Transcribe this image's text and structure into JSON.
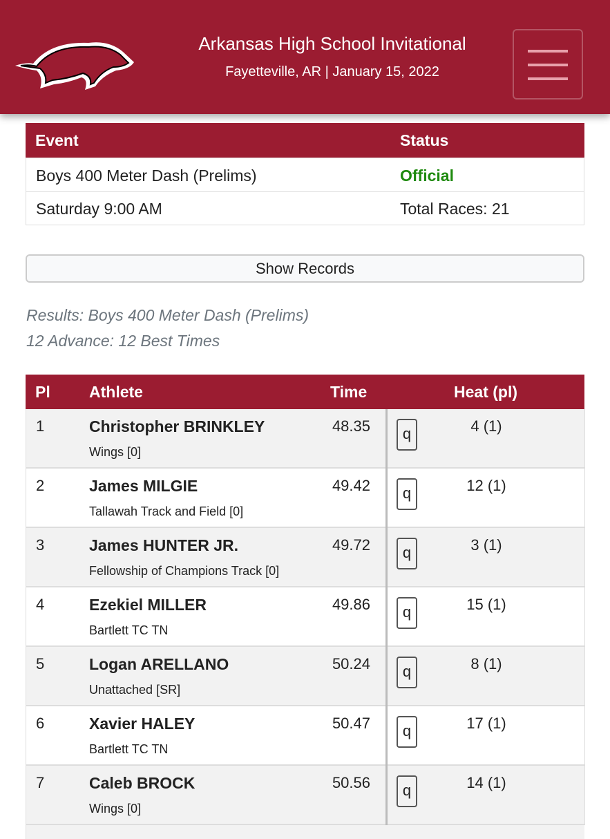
{
  "header": {
    "title": "Arkansas High School Invitational",
    "subtitle": "Fayetteville, AR | January 15, 2022"
  },
  "event_table": {
    "headers": [
      "Event",
      "Status"
    ],
    "rows": [
      [
        "Boys 400 Meter Dash (Prelims)",
        "Official"
      ],
      [
        "Saturday 9:00 AM",
        "Total Races: 21"
      ]
    ]
  },
  "records_button": "Show Records",
  "results": {
    "title": "Results: Boys 400 Meter Dash (Prelims)",
    "advance": "12 Advance: 12 Best Times",
    "headers": [
      "Pl",
      "Athlete",
      "Time",
      "Heat (pl)"
    ],
    "rows": [
      {
        "place": "1",
        "name": "Christopher BRINKLEY",
        "team": "Wings [0]",
        "time": "48.35",
        "mark": "q",
        "heat": "4 (1)"
      },
      {
        "place": "2",
        "name": "James MILGIE",
        "team": "Tallawah Track and Field [0]",
        "time": "49.42",
        "mark": "q",
        "heat": "12 (1)"
      },
      {
        "place": "3",
        "name": "James HUNTER JR.",
        "team": "Fellowship of Champions Track [0]",
        "time": "49.72",
        "mark": "q",
        "heat": "3 (1)"
      },
      {
        "place": "4",
        "name": "Ezekiel MILLER",
        "team": "Bartlett TC TN",
        "time": "49.86",
        "mark": "q",
        "heat": "15 (1)"
      },
      {
        "place": "5",
        "name": "Logan ARELLANO",
        "team": "Unattached [SR]",
        "time": "50.24",
        "mark": "q",
        "heat": "8 (1)"
      },
      {
        "place": "6",
        "name": "Xavier HALEY",
        "team": "Bartlett TC TN",
        "time": "50.47",
        "mark": "q",
        "heat": "17 (1)"
      },
      {
        "place": "7",
        "name": "Caleb BROCK",
        "team": "Wings [0]",
        "time": "50.56",
        "mark": "q",
        "heat": "14 (1)"
      }
    ]
  }
}
